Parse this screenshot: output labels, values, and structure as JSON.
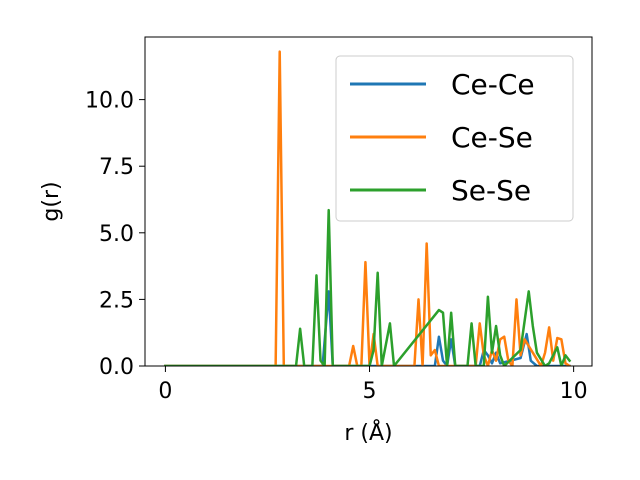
{
  "chart_data": {
    "type": "line",
    "title": "",
    "xlabel": "r (Å)",
    "ylabel": "g(r)",
    "xlim": [
      -0.5,
      10.45
    ],
    "ylim": [
      0,
      12.35
    ],
    "xticks": [
      0,
      5,
      10
    ],
    "yticks": [
      0.0,
      2.5,
      5.0,
      7.5,
      10.0
    ],
    "xtick_labels": [
      "0",
      "5",
      "10"
    ],
    "ytick_labels": [
      "0.0",
      "2.5",
      "5.0",
      "7.5",
      "10.0"
    ],
    "grid": false,
    "legend": {
      "position": "top-right"
    },
    "series": [
      {
        "name": "Ce-Ce",
        "color": "#1f77b4",
        "points": [
          [
            0,
            0
          ],
          [
            3.85,
            0
          ],
          [
            4.0,
            2.8
          ],
          [
            4.1,
            0
          ],
          [
            6.6,
            0
          ],
          [
            6.7,
            1.1
          ],
          [
            6.8,
            0.2
          ],
          [
            6.9,
            0
          ],
          [
            7.0,
            1.0
          ],
          [
            7.1,
            0
          ],
          [
            7.7,
            0
          ],
          [
            7.8,
            0.6
          ],
          [
            7.9,
            0.4
          ],
          [
            8.0,
            0.1
          ],
          [
            8.1,
            0.5
          ],
          [
            8.2,
            0.1
          ],
          [
            8.7,
            0.3
          ],
          [
            8.85,
            1.2
          ],
          [
            8.95,
            0.2
          ],
          [
            9.1,
            0
          ],
          [
            9.9,
            0
          ]
        ]
      },
      {
        "name": "Ce-Se",
        "color": "#ff7f0e",
        "points": [
          [
            0,
            0
          ],
          [
            2.7,
            0
          ],
          [
            2.8,
            11.8
          ],
          [
            2.9,
            0
          ],
          [
            4.5,
            0
          ],
          [
            4.6,
            0.75
          ],
          [
            4.7,
            0
          ],
          [
            4.8,
            0
          ],
          [
            4.9,
            3.9
          ],
          [
            5.0,
            0
          ],
          [
            5.1,
            1.2
          ],
          [
            5.2,
            0
          ],
          [
            6.1,
            0
          ],
          [
            6.2,
            2.5
          ],
          [
            6.3,
            0
          ],
          [
            6.4,
            4.6
          ],
          [
            6.5,
            0.4
          ],
          [
            6.6,
            0.6
          ],
          [
            6.7,
            0
          ],
          [
            7.5,
            0
          ],
          [
            7.6,
            0
          ],
          [
            7.7,
            1.6
          ],
          [
            7.8,
            0.4
          ],
          [
            7.9,
            0
          ],
          [
            8.0,
            0.6
          ],
          [
            8.1,
            0.2
          ],
          [
            8.2,
            1.0
          ],
          [
            8.3,
            1.1
          ],
          [
            8.4,
            0.2
          ],
          [
            8.5,
            0
          ],
          [
            8.6,
            2.5
          ],
          [
            8.7,
            0.4
          ],
          [
            8.8,
            1.0
          ],
          [
            9.0,
            0.5
          ],
          [
            9.2,
            0
          ],
          [
            9.3,
            0.5
          ],
          [
            9.4,
            1.45
          ],
          [
            9.5,
            0.2
          ],
          [
            9.6,
            1.05
          ],
          [
            9.7,
            1.0
          ],
          [
            9.8,
            0.1
          ],
          [
            9.9,
            0
          ]
        ]
      },
      {
        "name": "Se-Se",
        "color": "#2ca02c",
        "points": [
          [
            0,
            0
          ],
          [
            3.2,
            0
          ],
          [
            3.3,
            1.4
          ],
          [
            3.4,
            0
          ],
          [
            3.6,
            0
          ],
          [
            3.7,
            3.4
          ],
          [
            3.8,
            0.2
          ],
          [
            3.9,
            0
          ],
          [
            4.0,
            5.85
          ],
          [
            4.1,
            0
          ],
          [
            5.0,
            0
          ],
          [
            5.1,
            0.6
          ],
          [
            5.2,
            3.5
          ],
          [
            5.3,
            0
          ],
          [
            5.5,
            1.6
          ],
          [
            5.6,
            0
          ],
          [
            6.7,
            2.1
          ],
          [
            6.8,
            2.0
          ],
          [
            6.9,
            0
          ],
          [
            7.0,
            2.0
          ],
          [
            7.1,
            0
          ],
          [
            7.4,
            0
          ],
          [
            7.5,
            1.6
          ],
          [
            7.6,
            0
          ],
          [
            7.7,
            0
          ],
          [
            7.8,
            0
          ],
          [
            7.9,
            2.6
          ],
          [
            8.0,
            0.5
          ],
          [
            8.1,
            1.5
          ],
          [
            8.2,
            0.4
          ],
          [
            8.3,
            0
          ],
          [
            8.7,
            0.6
          ],
          [
            8.9,
            2.8
          ],
          [
            9.0,
            1.5
          ],
          [
            9.1,
            0.5
          ],
          [
            9.3,
            0
          ],
          [
            9.4,
            0.1
          ],
          [
            9.6,
            0.7
          ],
          [
            9.7,
            0
          ],
          [
            9.8,
            0.4
          ],
          [
            9.9,
            0.2
          ]
        ]
      }
    ]
  }
}
